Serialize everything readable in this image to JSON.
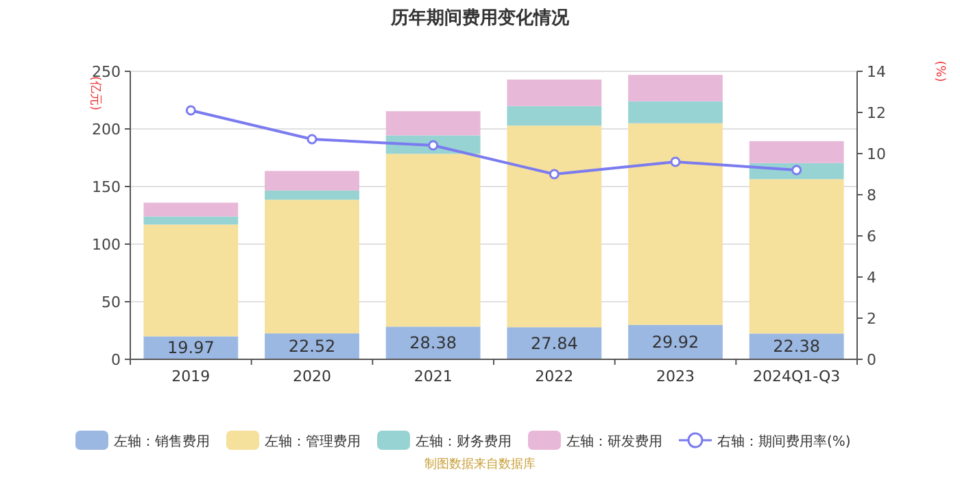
{
  "chart_data": {
    "type": "bar",
    "title": "历年期间费用变化情况",
    "ylabel": "(亿元)",
    "y2label": "(%)",
    "categories": [
      "2019",
      "2020",
      "2021",
      "2022",
      "2023",
      "2024Q1-Q3"
    ],
    "stacked": true,
    "series": [
      {
        "name": "左轴：销售费用",
        "color": "#9bb8e3",
        "values": [
          19.97,
          22.52,
          28.38,
          27.84,
          29.92,
          22.38
        ],
        "value_labels": [
          "19.97",
          "22.52",
          "28.38",
          "27.84",
          "29.92",
          "22.38"
        ]
      },
      {
        "name": "左轴：管理费用",
        "color": "#f5e09c",
        "values": [
          97,
          116,
          150,
          175,
          175,
          134
        ]
      },
      {
        "name": "左轴：财务费用",
        "color": "#97d3d3",
        "values": [
          7,
          8,
          16,
          17,
          19,
          14
        ]
      },
      {
        "name": "左轴：研发费用",
        "color": "#e8b8d8",
        "values": [
          12,
          17,
          21,
          23,
          23,
          19
        ]
      },
      {
        "name": "右轴：期间费用率(%)",
        "type": "line",
        "axis": "y2",
        "color": "#7b7bf0",
        "marker": "circle",
        "values": [
          12.1,
          10.7,
          10.4,
          9.0,
          9.6,
          9.2
        ]
      }
    ],
    "ylim": [
      0,
      250
    ],
    "yticks": [
      0,
      50,
      100,
      150,
      200,
      250
    ],
    "y2lim": [
      0,
      14
    ],
    "y2ticks": [
      0,
      2,
      4,
      6,
      8,
      10,
      12,
      14
    ],
    "grid": "y",
    "legend": "bottom",
    "annotations": [
      "制图数据来自数据库"
    ]
  }
}
